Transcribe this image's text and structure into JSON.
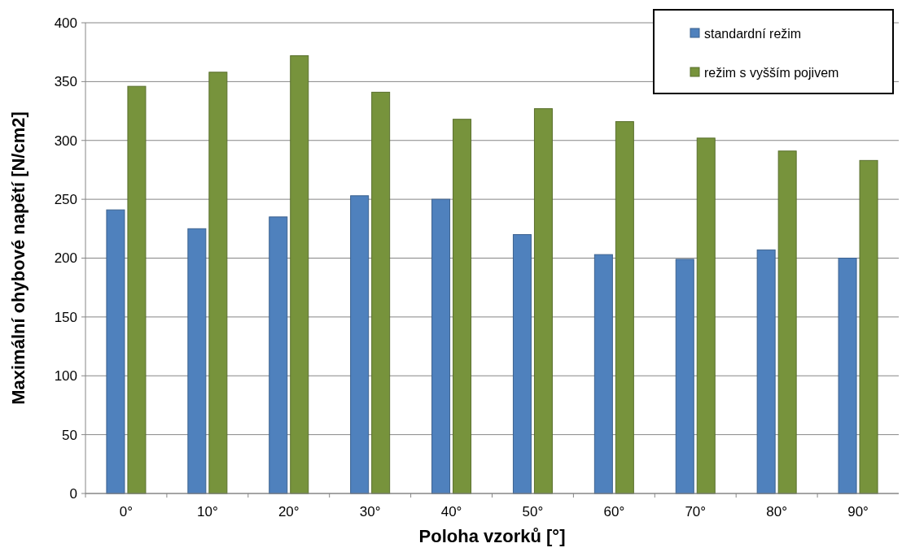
{
  "chart_data": {
    "type": "bar",
    "xlabel": "Poloha vzorků [°]",
    "ylabel": "Maximální ohybové napětí [N/cm2]",
    "categories": [
      "0°",
      "10°",
      "20°",
      "30°",
      "40°",
      "50°",
      "60°",
      "70°",
      "80°",
      "90°"
    ],
    "series": [
      {
        "name": "standardní režim",
        "color": "#4f81bd",
        "values": [
          241,
          225,
          235,
          253,
          250,
          220,
          203,
          199,
          207,
          200
        ]
      },
      {
        "name": "režim s vyšším pojivem",
        "color": "#77933c",
        "values": [
          346,
          358,
          372,
          341,
          318,
          327,
          316,
          302,
          291,
          283
        ]
      }
    ],
    "ylim": [
      0,
      400
    ],
    "yticks": [
      0,
      50,
      100,
      150,
      200,
      250,
      300,
      350,
      400
    ],
    "grid": "y",
    "legend": "top right"
  }
}
